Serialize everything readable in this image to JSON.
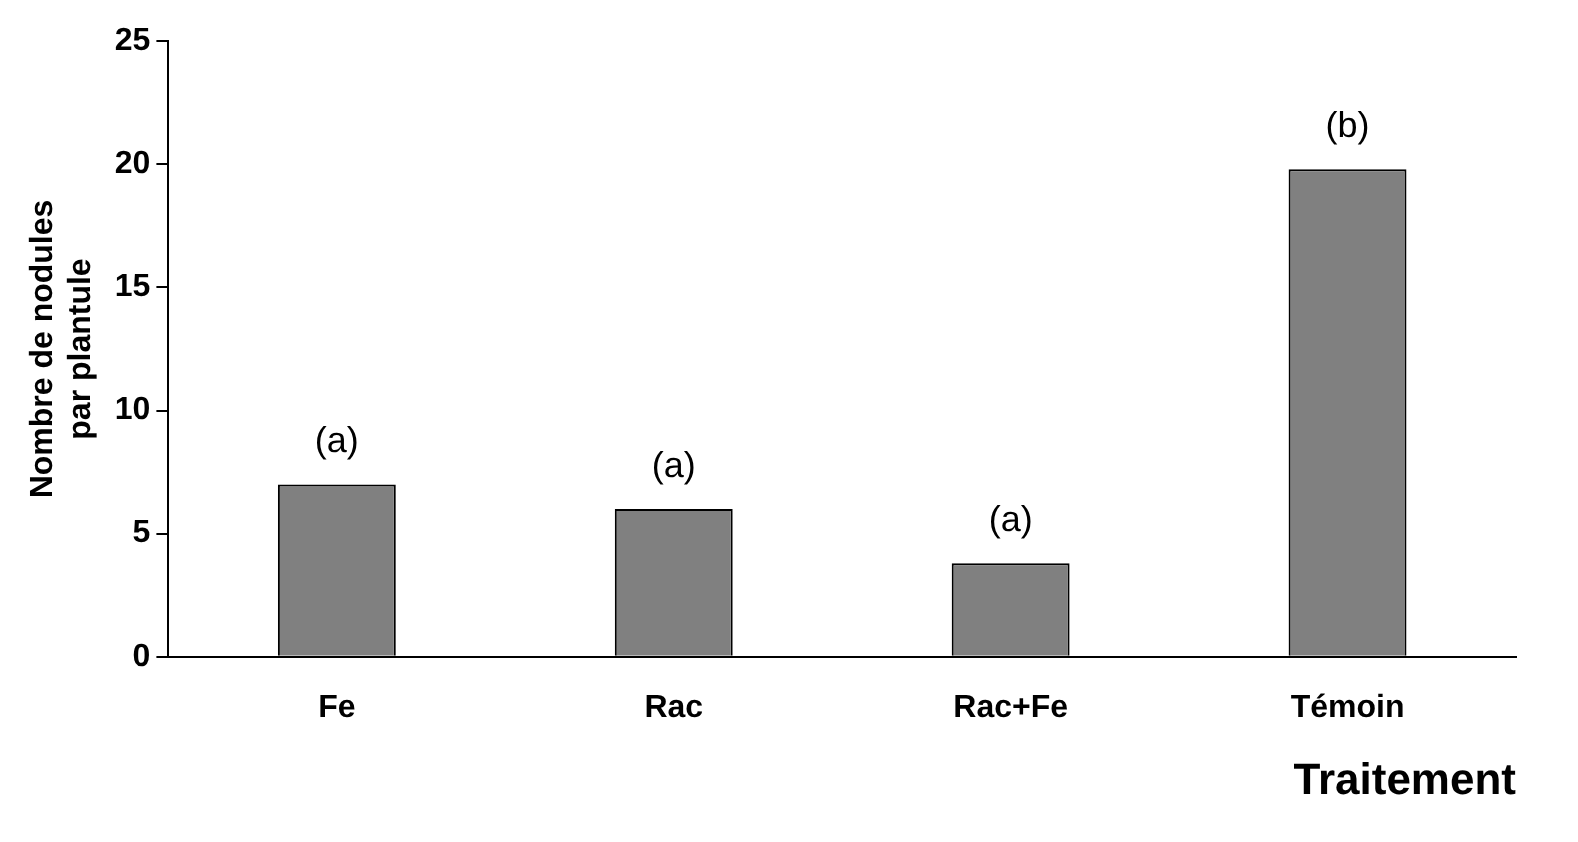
{
  "chart_data": {
    "type": "bar",
    "xlabel": "Traitement",
    "ylabel": "Nombre de nodules\npar plantule",
    "categories": [
      "Fe",
      "Rac",
      "Rac+Fe",
      "Témoin"
    ],
    "values": [
      7,
      6,
      3.8,
      19.8
    ],
    "color": "#808080",
    "ylim": [
      0,
      25
    ],
    "yticks": [
      0,
      5,
      10,
      15,
      20,
      25
    ],
    "grid": false,
    "legend": false,
    "annotations": [
      {
        "text": "(a)",
        "x": "Fe",
        "y": 7
      },
      {
        "text": "(a)",
        "x": "Rac",
        "y": 6
      },
      {
        "text": "(a)",
        "x": "Rac+Fe",
        "y": 3.8
      },
      {
        "text": "(b)",
        "x": "Témoin",
        "y": 19.8
      }
    ]
  }
}
